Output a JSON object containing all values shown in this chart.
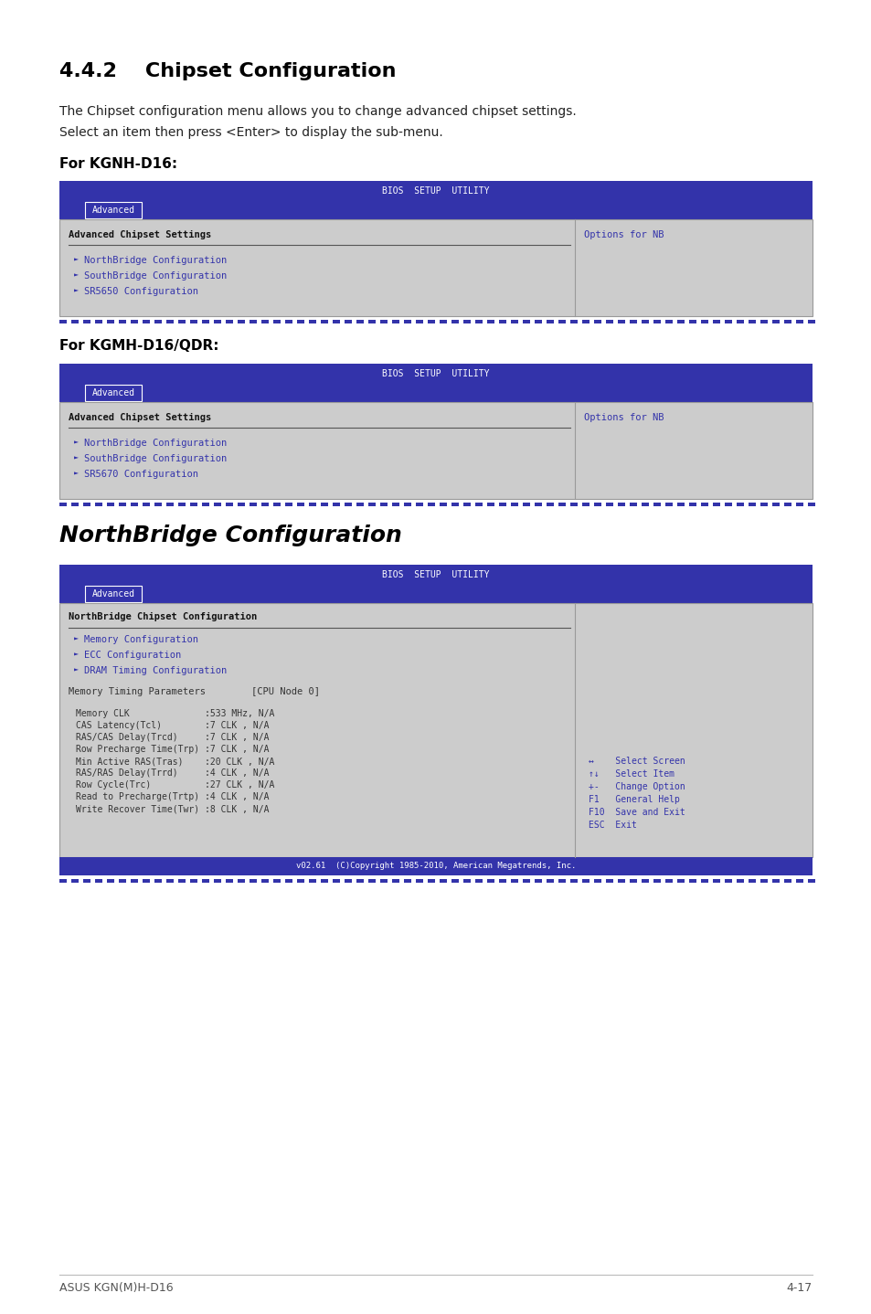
{
  "page_bg": "#ffffff",
  "title_442": "4.4.2    Chipset Configuration",
  "body_text1": "The Chipset configuration menu allows you to change advanced chipset settings.",
  "body_text2": "Select an item then press <Enter> to display the sub-menu.",
  "for_kgnh": "For KGNH-D16:",
  "for_kgmh": "For KGMH-D16/QDR:",
  "nb_config_title": "NorthBridge Configuration",
  "bios_bg": "#3333aa",
  "bios_header_text": "BIOS  SETUP  UTILITY",
  "advanced_tab_text": "Advanced",
  "content_bg": "#cccccc",
  "menu_item_color": "#3333aa",
  "footer_text": "v02.61  (C)Copyright 1985-2010, American Megatrends, Inc.",
  "page_footer_left": "ASUS KGN(M)H-D16",
  "page_footer_right": "4-17",
  "screen1_items": [
    "NorthBridge Configuration",
    "SouthBridge Configuration",
    "SR5650 Configuration"
  ],
  "screen1_header": "Advanced Chipset Settings",
  "screen1_right": "Options for NB",
  "screen2_items": [
    "NorthBridge Configuration",
    "SouthBridge Configuration",
    "SR5670 Configuration"
  ],
  "screen2_header": "Advanced Chipset Settings",
  "screen2_right": "Options for NB",
  "screen3_header": "NorthBridge Chipset Configuration",
  "screen3_items": [
    "Memory Configuration",
    "ECC Configuration",
    "DRAM Timing Configuration"
  ],
  "screen3_timing_header": "Memory Timing Parameters        [CPU Node 0]",
  "screen3_timing_items": [
    "Memory CLK              :533 MHz, N/A",
    "CAS Latency(Tcl)        :7 CLK , N/A",
    "RAS/CAS Delay(Trcd)     :7 CLK , N/A",
    "Row Precharge Time(Trp) :7 CLK , N/A",
    "Min Active RAS(Tras)    :20 CLK , N/A",
    "RAS/RAS Delay(Trrd)     :4 CLK , N/A",
    "Row Cycle(Trc)          :27 CLK , N/A",
    "Read to Precharge(Trtp) :4 CLK , N/A",
    "Write Recover Time(Twr) :8 CLK , N/A"
  ],
  "screen3_right_items": [
    "↔    Select Screen",
    "↑↓   Select Item",
    "+-   Change Option",
    "F1   General Help",
    "F10  Save and Exit",
    "ESC  Exit"
  ]
}
